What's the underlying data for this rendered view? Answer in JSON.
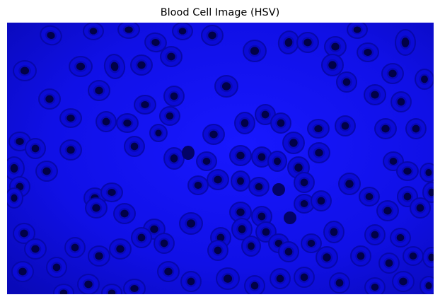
{
  "figure": {
    "title": "Blood Cell Image (HSV)"
  },
  "image": {
    "subject": "blood cells",
    "color_space": "HSV",
    "palette": {
      "background_center": "#1616ff",
      "background_edge": "#0a0ab8",
      "cell_body": "#0b0bd6",
      "cell_ring": "#0707a2",
      "cell_nucleus": "#010147",
      "dense_cell": "#030366"
    }
  }
}
